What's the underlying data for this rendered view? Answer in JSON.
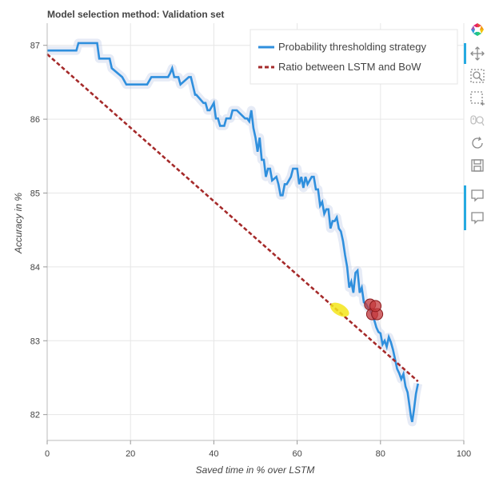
{
  "chart_data": {
    "type": "line",
    "title": "Model selection method: Validation set",
    "xlabel": "Saved time in % over LSTM",
    "ylabel": "Accuracy in %",
    "xlim": [
      0,
      100
    ],
    "ylim": [
      81.65,
      87.3
    ],
    "xticks": [
      0,
      20,
      40,
      60,
      80,
      100
    ],
    "yticks": [
      82,
      83,
      84,
      85,
      86,
      87
    ],
    "xtick_labels": [
      "0",
      "20",
      "40",
      "60",
      "80",
      "100"
    ],
    "ytick_labels": [
      "82",
      "83",
      "84",
      "85",
      "86",
      "87"
    ],
    "grid": true,
    "legend_position": "top-right",
    "series": [
      {
        "name": "Probability thresholding strategy",
        "style": "solid",
        "color": "#2f8fdd",
        "x": [
          0,
          7,
          7.5,
          12,
          12.5,
          15,
          15.5,
          18,
          19,
          24,
          25,
          29,
          29.5,
          30,
          30.5,
          31.5,
          32,
          34,
          34.5,
          35.5,
          35.8,
          37.5,
          38,
          38.5,
          39,
          40,
          40.5,
          41,
          41.5,
          42.5,
          43,
          44,
          44.5,
          45,
          45.5,
          47.5,
          48,
          48.5,
          49,
          49.5,
          50,
          50.5,
          51,
          51.5,
          52,
          52.5,
          53,
          53.5,
          54,
          55,
          55.5,
          56,
          56.5,
          57,
          57.5,
          58.5,
          59,
          60,
          60.5,
          61,
          61.5,
          62,
          62.5,
          63.5,
          64,
          64.5,
          65,
          65.5,
          66,
          66.5,
          67,
          67.5,
          68,
          68.5,
          69,
          69.5,
          70,
          70.5,
          71,
          71.5,
          72,
          72.5,
          73,
          73.5,
          74,
          74.5,
          75,
          75.5,
          76,
          76.5,
          77,
          77.5,
          78,
          78.5,
          79,
          79.5,
          80,
          80.5,
          81,
          81.5,
          82,
          82.5,
          83,
          83.5,
          84,
          84.5,
          85,
          85.5,
          86,
          86.5,
          87,
          87.3,
          87.6,
          88,
          88.5,
          89
        ],
        "y": [
          86.93,
          86.93,
          87.03,
          87.03,
          86.82,
          86.82,
          86.69,
          86.57,
          86.47,
          86.47,
          86.57,
          86.57,
          86.62,
          86.69,
          86.57,
          86.57,
          86.47,
          86.57,
          86.57,
          86.33,
          86.33,
          86.22,
          86.22,
          86.12,
          86.12,
          86.22,
          86.01,
          86.01,
          85.91,
          85.91,
          86.01,
          86.01,
          86.12,
          86.12,
          86.12,
          86.01,
          86.01,
          85.97,
          86.12,
          85.88,
          85.75,
          85.56,
          85.75,
          85.45,
          85.45,
          85.22,
          85.33,
          85.33,
          85.17,
          85.22,
          85.12,
          84.97,
          84.97,
          85.12,
          85.12,
          85.22,
          85.33,
          85.33,
          85.12,
          85.22,
          85.07,
          85.22,
          85.12,
          85.22,
          85.22,
          85.05,
          85.05,
          84.83,
          84.88,
          84.72,
          84.78,
          84.78,
          84.52,
          84.62,
          84.62,
          84.67,
          84.52,
          84.48,
          84.35,
          84.16,
          84.0,
          83.72,
          83.8,
          83.65,
          83.92,
          83.95,
          83.65,
          83.72,
          83.52,
          83.5,
          83.45,
          83.42,
          83.35,
          83.28,
          83.18,
          83.12,
          83.1,
          82.95,
          83.0,
          82.92,
          83.05,
          82.98,
          82.88,
          82.75,
          82.62,
          82.56,
          82.48,
          82.55,
          82.38,
          82.3,
          82.1,
          81.98,
          81.9,
          82.05,
          82.28,
          82.42
        ],
        "color_band": "#b7c6e5"
      },
      {
        "name": "Ratio between LSTM and BoW",
        "style": "dashed",
        "color": "#a52a2a",
        "x": [
          0,
          89
        ],
        "y": [
          86.88,
          82.45
        ]
      }
    ],
    "markers": [
      {
        "x": 70.2,
        "y": 83.42,
        "color": "#f3e51a",
        "shape": "ellipse"
      },
      {
        "x": 77.5,
        "y": 83.49,
        "color": "#c4393c"
      },
      {
        "x": 78.0,
        "y": 83.36,
        "color": "#c4393c"
      },
      {
        "x": 79.2,
        "y": 83.36,
        "color": "#c4393c"
      },
      {
        "x": 78.8,
        "y": 83.47,
        "color": "#c4393c"
      }
    ]
  },
  "toolbar": {
    "tools": [
      {
        "icon": "bokeh-logo-icon",
        "active": false
      },
      {
        "icon": "pan-icon",
        "active": true
      },
      {
        "icon": "box-zoom-icon",
        "active": false
      },
      {
        "icon": "box-select-icon",
        "active": false
      },
      {
        "icon": "wheel-zoom-icon",
        "active": false
      },
      {
        "icon": "reset-icon",
        "active": false
      },
      {
        "icon": "save-icon",
        "active": false
      },
      {
        "icon": "hover-icon",
        "active": true
      },
      {
        "icon": "hover-icon",
        "active": true
      }
    ],
    "accent_color": "#26aae1"
  }
}
